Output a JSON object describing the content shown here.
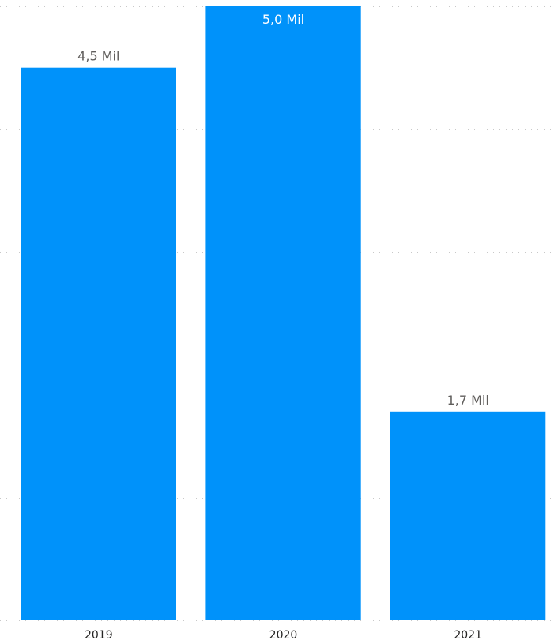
{
  "chart_data": {
    "type": "bar",
    "title": "",
    "xlabel": "",
    "ylabel": "",
    "categories": [
      "2019",
      "2020",
      "2021"
    ],
    "values": [
      4500,
      5000,
      1700
    ],
    "data_labels": [
      "4,5 Mil",
      "5,0 Mil",
      "1,7 Mil"
    ],
    "ylim": [
      0,
      5000
    ],
    "grid": true,
    "legend": "none",
    "colors": {
      "bar": "#0092fa",
      "label_outside": "#605e5c",
      "label_inside": "#ffffff",
      "gridline": "#c8c8c8"
    }
  }
}
